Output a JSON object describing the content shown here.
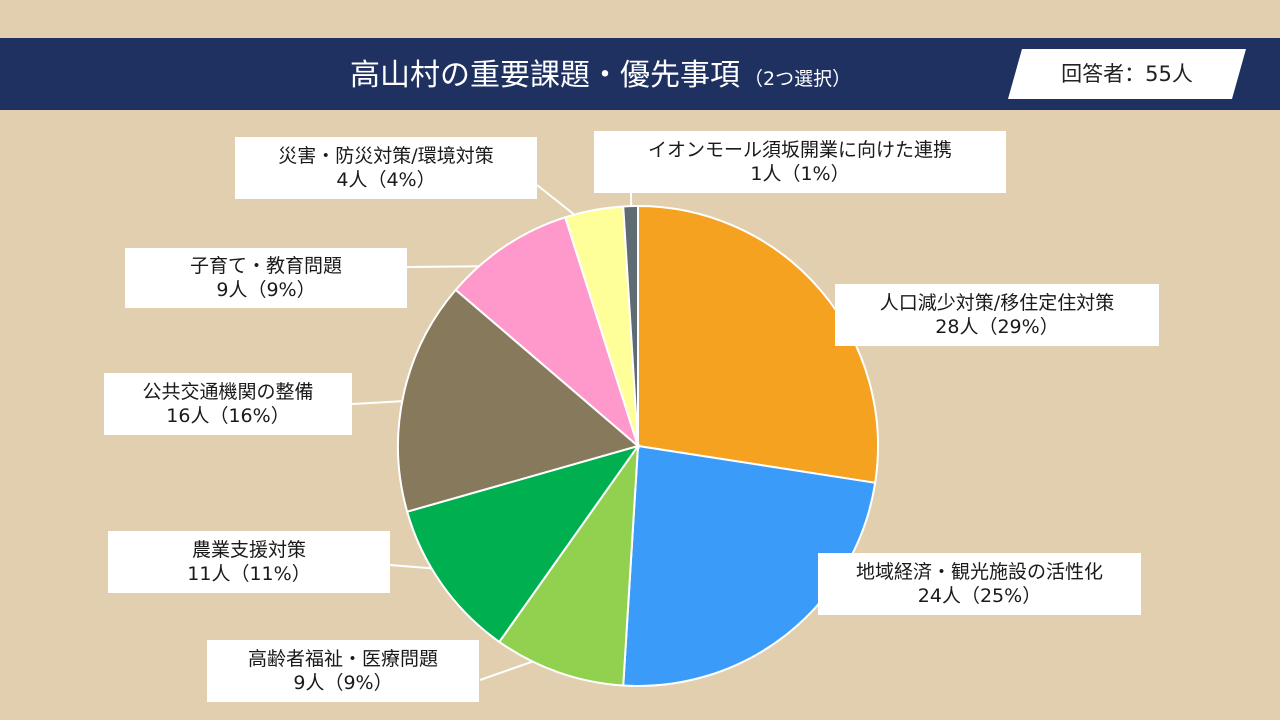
{
  "header": {
    "title": "高山村の重要課題・優先事項",
    "title_sub": "（2つ選択）",
    "respondents": "回答者：55人"
  },
  "chart_data": {
    "type": "pie",
    "start": "12 o'clock",
    "direction": "clockwise",
    "slices": [
      {
        "label": "人口減少対策/移住定住対策",
        "count_label": "28人（29%）",
        "value": 28,
        "percent": 29,
        "color": "#f5a220"
      },
      {
        "label": "地域経済・観光施設の活性化",
        "count_label": "24人（25%）",
        "value": 24,
        "percent": 25,
        "color": "#3a9cf8"
      },
      {
        "label": "高齢者福祉・医療問題",
        "count_label": "9人（9%）",
        "value": 9,
        "percent": 9,
        "color": "#92d050"
      },
      {
        "label": "農業支援対策",
        "count_label": "11人（11%）",
        "value": 11,
        "percent": 11,
        "color": "#00b050"
      },
      {
        "label": "公共交通機関の整備",
        "count_label": "16人（16%）",
        "value": 16,
        "percent": 16,
        "color": "#877a5c"
      },
      {
        "label": "子育て・教育問題",
        "count_label": "9人（9%）",
        "value": 9,
        "percent": 9,
        "color": "#ff99cc"
      },
      {
        "label": "災害・防災対策/環境対策",
        "count_label": "4人（4%）",
        "value": 4,
        "percent": 4,
        "color": "#ffff99"
      },
      {
        "label": "イオンモール須坂開業に向けた連携",
        "count_label": "1人（1%）",
        "value": 1,
        "percent": 1,
        "color": "#5f6b73"
      }
    ]
  }
}
